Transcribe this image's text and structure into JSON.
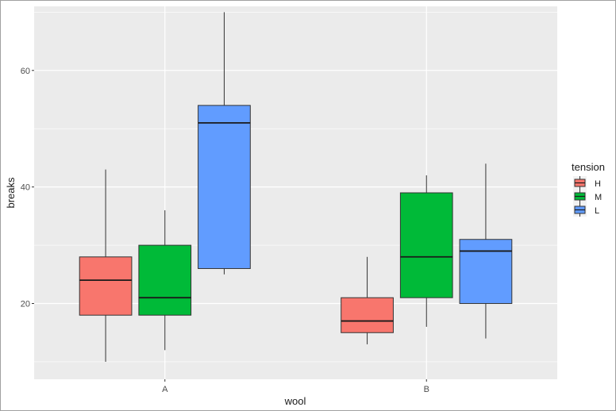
{
  "chart_data": {
    "type": "boxplot",
    "xlabel": "wool",
    "ylabel": "breaks",
    "categories": [
      "A",
      "B"
    ],
    "ylim": [
      7,
      71
    ],
    "yticks": [
      20,
      40,
      60
    ],
    "grid": true,
    "legend": {
      "title": "tension",
      "placement": "right",
      "entries": [
        "H",
        "M",
        "L"
      ]
    },
    "series": [
      {
        "name": "H",
        "color": "#F8766D",
        "boxes": [
          {
            "category": "A",
            "min": 10,
            "q1": 18,
            "median": 24,
            "q3": 28,
            "max": 43
          },
          {
            "category": "B",
            "min": 13,
            "q1": 15,
            "median": 17,
            "q3": 21,
            "max": 28
          }
        ]
      },
      {
        "name": "M",
        "color": "#00BA38",
        "boxes": [
          {
            "category": "A",
            "min": 12,
            "q1": 18,
            "median": 21,
            "q3": 30,
            "max": 36
          },
          {
            "category": "B",
            "min": 16,
            "q1": 21,
            "median": 28,
            "q3": 39,
            "max": 42
          }
        ]
      },
      {
        "name": "L",
        "color": "#619CFF",
        "boxes": [
          {
            "category": "A",
            "min": 25,
            "q1": 26,
            "median": 51,
            "q3": 54,
            "max": 70
          },
          {
            "category": "B",
            "min": 14,
            "q1": 20,
            "median": 29,
            "q3": 31,
            "max": 44
          }
        ]
      }
    ]
  }
}
